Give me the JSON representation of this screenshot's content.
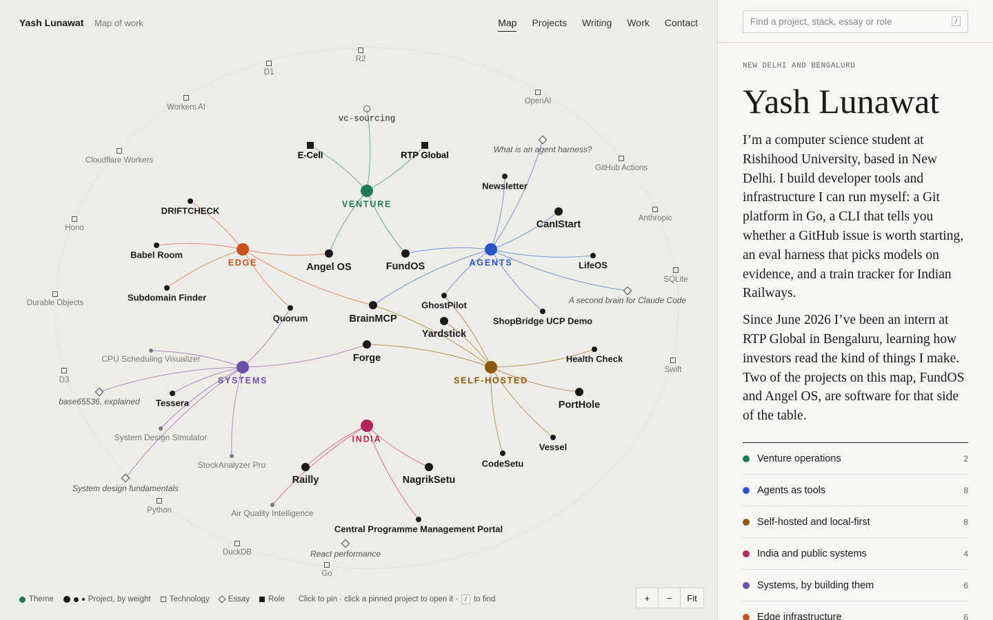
{
  "header": {
    "brand": "Yash Lunawat",
    "subtitle": "Map of work",
    "nav": [
      "Map",
      "Projects",
      "Writing",
      "Work",
      "Contact"
    ]
  },
  "search": {
    "placeholder": "Find a project, stack, essay or role",
    "key": "/"
  },
  "graph": {
    "nodes": [
      {
        "label": "VENTURE",
        "kind": "theme",
        "color": "#1f7a55"
      },
      {
        "label": "EDGE",
        "kind": "theme",
        "color": "#c8531e"
      },
      {
        "label": "AGENTS",
        "kind": "theme",
        "color": "#2a52c9"
      },
      {
        "label": "SYSTEMS",
        "kind": "theme",
        "color": "#6a4fa8"
      },
      {
        "label": "SELF-HOSTED",
        "kind": "theme",
        "color": "#8a5a0a"
      },
      {
        "label": "INDIA",
        "kind": "theme",
        "color": "#b8245a"
      },
      {
        "label": "vc-sourcing",
        "kind": "idea"
      },
      {
        "label": "E-Cell",
        "kind": "role"
      },
      {
        "label": "RTP Global",
        "kind": "role"
      },
      {
        "label": "DRIFTCHECK",
        "kind": "project"
      },
      {
        "label": "Babel Room",
        "kind": "project"
      },
      {
        "label": "Angel OS",
        "kind": "project"
      },
      {
        "label": "FundOS",
        "kind": "project"
      },
      {
        "label": "Subdomain Finder",
        "kind": "project"
      },
      {
        "label": "Quorum",
        "kind": "project"
      },
      {
        "label": "BrainMCP",
        "kind": "project"
      },
      {
        "label": "GhostPilot",
        "kind": "project"
      },
      {
        "label": "Yardstick",
        "kind": "project"
      },
      {
        "label": "Newsletter",
        "kind": "project"
      },
      {
        "label": "CanIStart",
        "kind": "project"
      },
      {
        "label": "LifeOS",
        "kind": "project"
      },
      {
        "label": "What is an agent harness?",
        "kind": "essay"
      },
      {
        "label": "ShopBridge UCP Demo",
        "kind": "project"
      },
      {
        "label": "A second brain for Claude Code",
        "kind": "essay"
      },
      {
        "label": "Forge",
        "kind": "project"
      },
      {
        "label": "Health Check",
        "kind": "project"
      },
      {
        "label": "PortHole",
        "kind": "project"
      },
      {
        "label": "CodeSetu",
        "kind": "project"
      },
      {
        "label": "Vessel",
        "kind": "project"
      },
      {
        "label": "CPU Scheduling Visualizer",
        "kind": "project"
      },
      {
        "label": "base65536, explained",
        "kind": "essay"
      },
      {
        "label": "Tessera",
        "kind": "project"
      },
      {
        "label": "System Design Simulator",
        "kind": "project"
      },
      {
        "label": "StockAnalyzer Pro",
        "kind": "project"
      },
      {
        "label": "System design fundamentals",
        "kind": "essay"
      },
      {
        "label": "Railly",
        "kind": "project"
      },
      {
        "label": "NagrikSetu",
        "kind": "project"
      },
      {
        "label": "Air Quality Intelligence",
        "kind": "project"
      },
      {
        "label": "Central Programme Management Portal",
        "kind": "project"
      },
      {
        "label": "React performance",
        "kind": "essay"
      },
      {
        "label": "R2",
        "kind": "technology"
      },
      {
        "label": "D1",
        "kind": "technology"
      },
      {
        "label": "Workers AI",
        "kind": "technology"
      },
      {
        "label": "OpenAI",
        "kind": "technology"
      },
      {
        "label": "Cloudflare Workers",
        "kind": "technology"
      },
      {
        "label": "GitHub Actions",
        "kind": "technology"
      },
      {
        "label": "Anthropic",
        "kind": "technology"
      },
      {
        "label": "Hono",
        "kind": "technology"
      },
      {
        "label": "SQLite",
        "kind": "technology"
      },
      {
        "label": "Durable Objects",
        "kind": "technology"
      },
      {
        "label": "Swift",
        "kind": "technology"
      },
      {
        "label": "D3",
        "kind": "technology"
      },
      {
        "label": "Python",
        "kind": "technology"
      },
      {
        "label": "DuckDB",
        "kind": "technology"
      },
      {
        "label": "Go",
        "kind": "technology"
      }
    ]
  },
  "legend": {
    "theme": "Theme",
    "project": "Project, by weight",
    "technology": "Technology",
    "essay": "Essay",
    "role": "Role",
    "hint": "Click to pin · click a pinned project to open it ·",
    "key": "/",
    "hint_end": "to find"
  },
  "zoom": [
    "+",
    "−",
    "Fit"
  ],
  "profile": {
    "location": "NEW DELHI AND BENGALURU",
    "name": "Yash Lunawat",
    "paragraphs": [
      "I’m a computer science student at Rishihood University, based in New Delhi. I build developer tools and infrastructure I can run myself: a Git platform in Go, a CLI that tells you whether a GitHub issue is worth starting, an eval harness that picks models on evidence, and a train tracker for Indian Railways.",
      "Since June 2026 I’ve been an intern at RTP Global in Bengaluru, learning how investors read the kind of things I make. Two of the projects on this map, FundOS and Angel OS, are software for that side of the table."
    ]
  },
  "themes": [
    {
      "name": "Venture operations",
      "count": 2,
      "color": "#1f7a55"
    },
    {
      "name": "Agents as tools",
      "count": 8,
      "color": "#2a52c9"
    },
    {
      "name": "Self-hosted and local-first",
      "count": 8,
      "color": "#8a5a0a"
    },
    {
      "name": "India and public systems",
      "count": 4,
      "color": "#b8245a"
    },
    {
      "name": "Systems, by building them",
      "count": 6,
      "color": "#6a4fa8"
    },
    {
      "name": "Edge infrastructure",
      "count": 6,
      "color": "#c8531e"
    }
  ]
}
